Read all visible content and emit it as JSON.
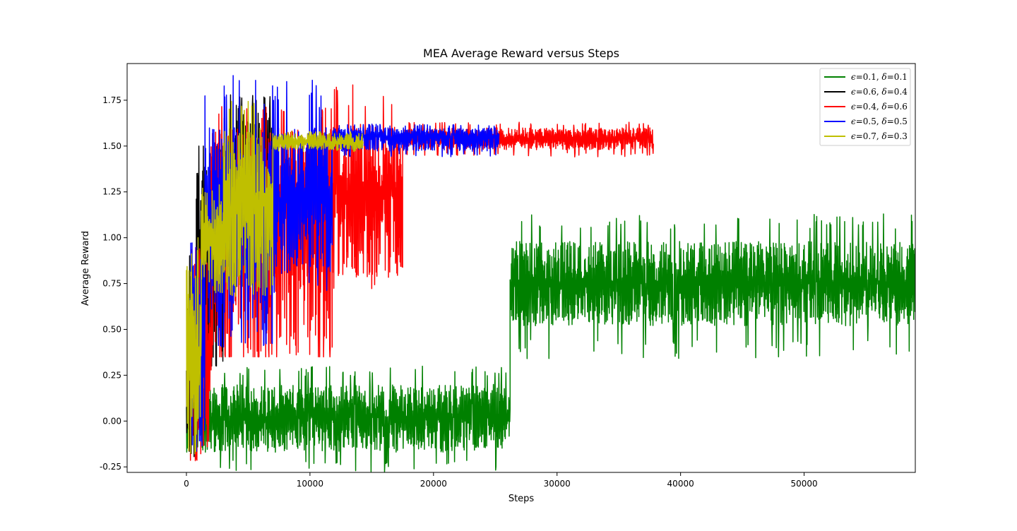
{
  "chart_data": {
    "type": "line",
    "title": "MEA Average Reward versus Steps",
    "xlabel": "Steps",
    "ylabel": "Average Reward",
    "xlim": [
      -4800,
      59000
    ],
    "ylim": [
      -0.28,
      1.95
    ],
    "xticks": [
      0,
      10000,
      20000,
      30000,
      40000,
      50000
    ],
    "yticks": [
      -0.25,
      0.0,
      0.25,
      0.5,
      0.75,
      1.0,
      1.25,
      1.5,
      1.75
    ],
    "xtick_labels": [
      "0",
      "10000",
      "20000",
      "30000",
      "40000",
      "50000"
    ],
    "ytick_labels": [
      "-0.25",
      "0.00",
      "0.25",
      "0.50",
      "0.75",
      "1.00",
      "1.25",
      "1.50",
      "1.75"
    ],
    "grid": false,
    "legend_position": "top-right",
    "series": [
      {
        "name": "=0.1, =0.1",
        "eps": "0.1",
        "delta": "0.1",
        "color": "#008000",
        "x_end": 59000,
        "segments": [
          {
            "x0": 0,
            "x1": 26200,
            "mean": 0.02,
            "low": -0.17,
            "high": 0.2,
            "spike_low": -0.28,
            "spike_high": 0.3
          },
          {
            "x0": 26200,
            "x1": 59000,
            "mean": 0.75,
            "low": 0.52,
            "high": 0.98,
            "spike_low": 0.34,
            "spike_high": 1.13
          }
        ]
      },
      {
        "name": "=0.6, =0.4",
        "eps": "0.6",
        "delta": "0.4",
        "color": "#000000",
        "x_end": 7000,
        "segments": [
          {
            "x0": 0,
            "x1": 800,
            "mean": 0.1,
            "low": -0.18,
            "high": 0.95,
            "spike_low": -0.2,
            "spike_high": 0.95
          },
          {
            "x0": 800,
            "x1": 3000,
            "mean": 1.0,
            "low": 0.3,
            "high": 1.5,
            "spike_low": 0.3,
            "spike_high": 1.5
          },
          {
            "x0": 3000,
            "x1": 7000,
            "mean": 1.3,
            "low": 0.75,
            "high": 1.75,
            "spike_low": 0.72,
            "spike_high": 1.78
          }
        ]
      },
      {
        "name": "=0.4, =0.6",
        "eps": "0.4",
        "delta": "0.6",
        "color": "#ff0000",
        "x_end": 37800,
        "segments": [
          {
            "x0": 300,
            "x1": 2000,
            "mean": 0.4,
            "low": -0.2,
            "high": 0.9,
            "spike_low": -0.22,
            "spike_high": 0.95
          },
          {
            "x0": 2000,
            "x1": 11800,
            "mean": 1.2,
            "low": 0.35,
            "high": 1.6,
            "spike_low": 0.35,
            "spike_high": 1.72
          },
          {
            "x0": 11800,
            "x1": 17500,
            "mean": 1.25,
            "low": 0.78,
            "high": 1.62,
            "spike_low": 0.7,
            "spike_high": 1.85
          },
          {
            "x0": 17500,
            "x1": 37800,
            "mean": 1.54,
            "low": 1.48,
            "high": 1.6,
            "spike_low": 1.44,
            "spike_high": 1.63
          }
        ]
      },
      {
        "name": "=0.5, =0.5",
        "eps": "0.5",
        "delta": "0.5",
        "color": "#0000ff",
        "x_end": 25300,
        "segments": [
          {
            "x0": 300,
            "x1": 1500,
            "mean": 0.5,
            "low": -0.15,
            "high": 1.0,
            "spike_low": -0.18,
            "spike_high": 1.0
          },
          {
            "x0": 1500,
            "x1": 7000,
            "mean": 1.1,
            "low": 0.45,
            "high": 1.6,
            "spike_low": 0.4,
            "spike_high": 1.91
          },
          {
            "x0": 7000,
            "x1": 11800,
            "mean": 1.2,
            "low": 0.8,
            "high": 1.6,
            "spike_low": 0.7,
            "spike_high": 1.87
          },
          {
            "x0": 11800,
            "x1": 25300,
            "mean": 1.55,
            "low": 1.47,
            "high": 1.6,
            "spike_low": 1.44,
            "spike_high": 1.62
          }
        ]
      },
      {
        "name": "=0.7, =0.3",
        "eps": "0.7",
        "delta": "0.3",
        "color": "#bfbf00",
        "x_end": 14300,
        "segments": [
          {
            "x0": 0,
            "x1": 1200,
            "mean": 0.4,
            "low": -0.17,
            "high": 1.0,
            "spike_low": -0.18,
            "spike_high": 1.0
          },
          {
            "x0": 1200,
            "x1": 3000,
            "mean": 1.0,
            "low": 0.7,
            "high": 1.3,
            "spike_low": 0.7,
            "spike_high": 1.45
          },
          {
            "x0": 3000,
            "x1": 7000,
            "mean": 1.2,
            "low": 0.7,
            "high": 1.6,
            "spike_low": 0.68,
            "spike_high": 1.75
          },
          {
            "x0": 7000,
            "x1": 14300,
            "mean": 1.52,
            "low": 1.48,
            "high": 1.57,
            "spike_low": 1.47,
            "spike_high": 1.58
          }
        ]
      }
    ]
  }
}
